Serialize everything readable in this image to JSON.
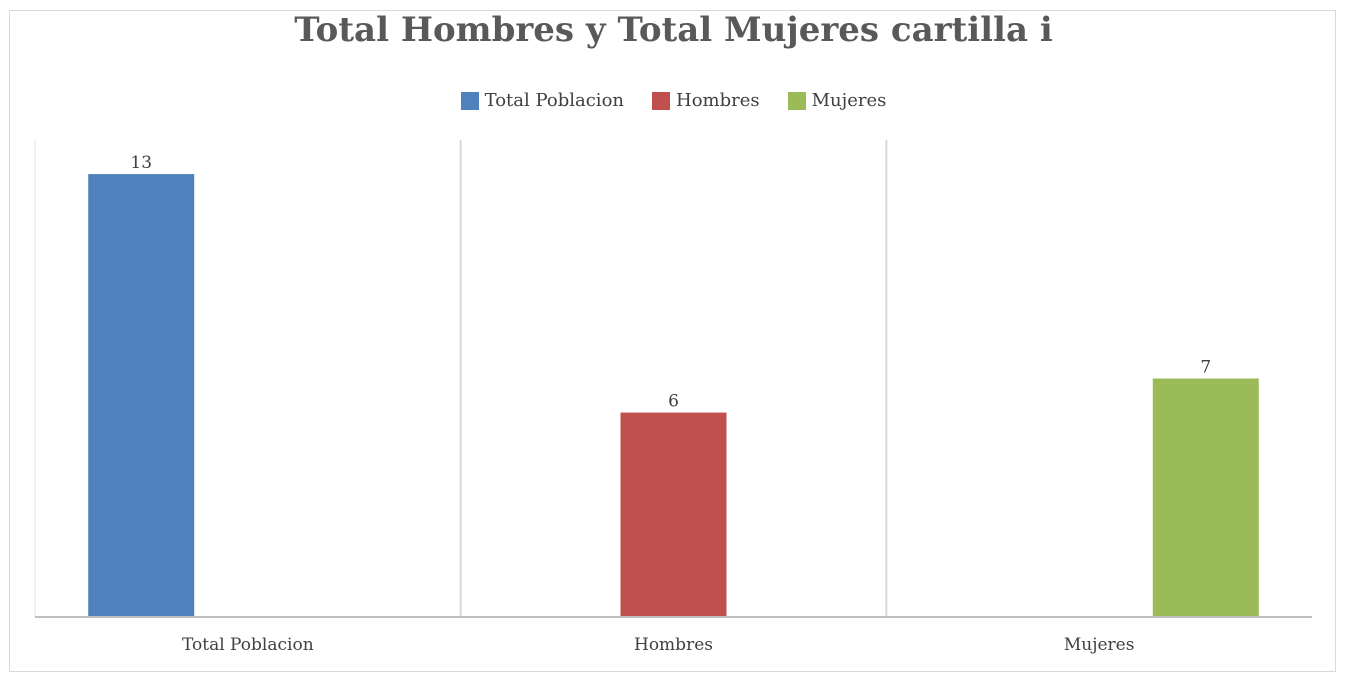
{
  "chart_data": {
    "type": "bar",
    "title": "Total Hombres y Total Mujeres cartilla i",
    "xlabel": "",
    "ylabel": "",
    "ylim": [
      0,
      14
    ],
    "grid": false,
    "legend_position": "top",
    "categories": [
      "Total Poblacion",
      "Hombres",
      "Mujeres"
    ],
    "series": [
      {
        "name": "Total Poblacion",
        "color": "#4f81bd",
        "values": [
          13,
          null,
          null
        ]
      },
      {
        "name": "Hombres",
        "color": "#c0504d",
        "values": [
          null,
          6,
          null
        ]
      },
      {
        "name": "Mujeres",
        "color": "#9bbb59",
        "values": [
          null,
          null,
          7
        ]
      }
    ]
  }
}
